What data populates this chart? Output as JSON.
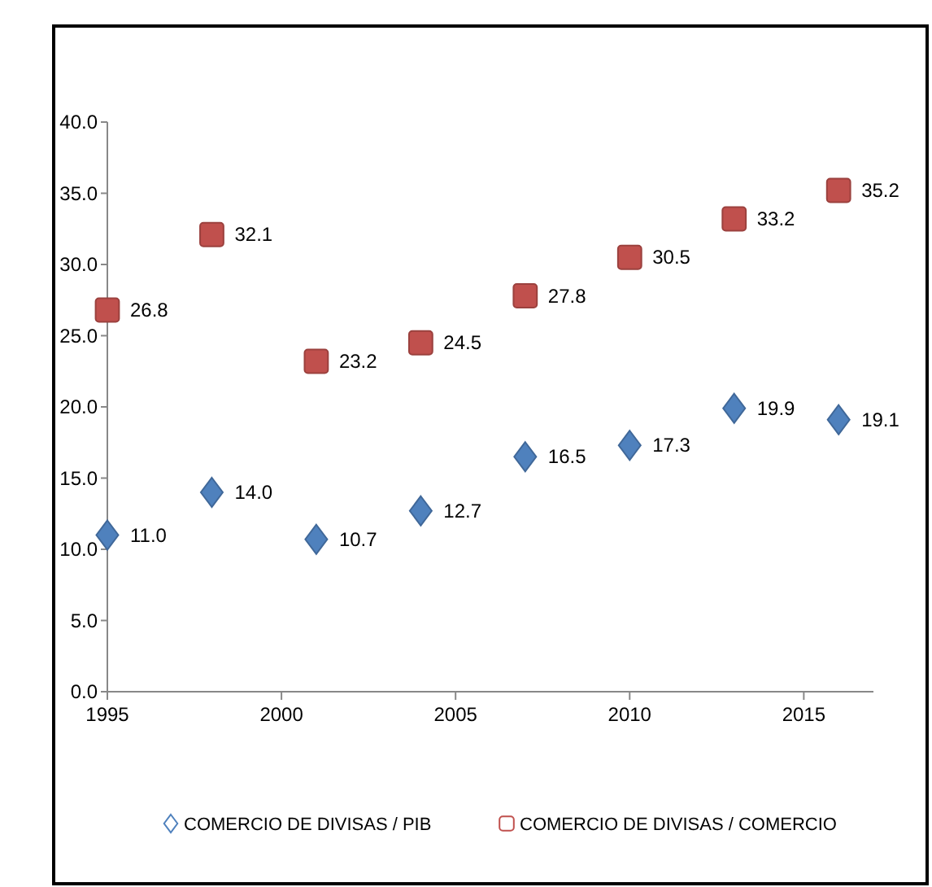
{
  "chart_data": {
    "type": "scatter",
    "x": [
      1995,
      1998,
      2001,
      2004,
      2007,
      2010,
      2013,
      2016
    ],
    "series": [
      {
        "name": "COMERCIO DE DIVISAS / PIB",
        "color": "#4f81bd",
        "marker": "diamond",
        "values": [
          11.0,
          14.0,
          10.7,
          12.7,
          16.5,
          17.3,
          19.9,
          19.1
        ],
        "value_labels": [
          "11.0",
          "14.0",
          "10.7",
          "12.7",
          "16.5",
          "17.3",
          "19.9",
          "19.1"
        ]
      },
      {
        "name": "COMERCIO DE DIVISAS / COMERCIO",
        "color": "#c0504d",
        "marker": "square",
        "values": [
          26.8,
          32.1,
          23.2,
          24.5,
          27.8,
          30.5,
          33.2,
          35.2
        ],
        "value_labels": [
          "26.8",
          "32.1",
          "23.2",
          "24.5",
          "27.8",
          "30.5",
          "33.2",
          "35.2"
        ]
      }
    ],
    "xlim": [
      1995,
      2017
    ],
    "xticks": [
      1995,
      2000,
      2005,
      2010,
      2015
    ],
    "ylim": [
      0,
      40
    ],
    "yticks": [
      {
        "value": 0,
        "label": "0.0"
      },
      {
        "value": 5,
        "label": "5.0"
      },
      {
        "value": 10,
        "label": "10.0"
      },
      {
        "value": 15,
        "label": "15.0"
      },
      {
        "value": 20,
        "label": "20.0"
      },
      {
        "value": 25,
        "label": "25.0"
      },
      {
        "value": 30,
        "label": "30.0"
      },
      {
        "value": 35,
        "label": "35.0"
      },
      {
        "value": 40,
        "label": "40.0"
      }
    ],
    "grid": false,
    "legend": "bottom"
  }
}
